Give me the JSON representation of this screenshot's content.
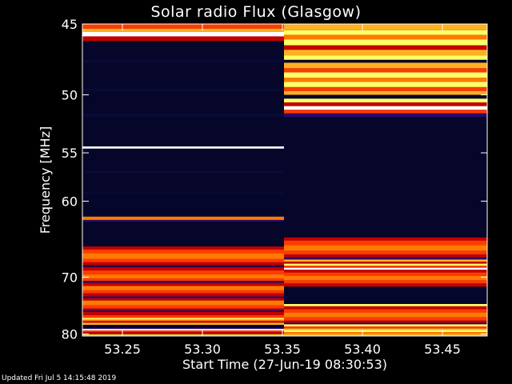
{
  "chart_data": {
    "type": "heatmap",
    "title": "Solar radio Flux (Glasgow)",
    "xlabel": "Start Time (27-Jun-19 08:30:53)",
    "ylabel": "Frequency [MHz]",
    "xlim": [
      53.225,
      53.478
    ],
    "ylim": [
      45.0,
      80.4
    ],
    "x_ticks": [
      "53.25",
      "53.30",
      "53.35",
      "53.40",
      "53.45"
    ],
    "x_tick_values": [
      53.25,
      53.3,
      53.35,
      53.4,
      53.45
    ],
    "y_ticks": [
      "45",
      "50",
      "55",
      "60",
      "70",
      "80"
    ],
    "y_tick_values": [
      45,
      50,
      55,
      60,
      70,
      80
    ],
    "y_scale": "reciprocal",
    "colormap": [
      "#050525",
      "#2a0a6a",
      "#c40000",
      "#ff3a00",
      "#ff7a00",
      "#ffb020",
      "#ffff66",
      "#ffffff"
    ],
    "segments": [
      {
        "x_range": [
          53.225,
          53.351
        ],
        "background": "#05062a",
        "bands": [
          {
            "f": [
              45.0,
              45.3
            ],
            "color": "#ff3a00"
          },
          {
            "f": [
              45.3,
              45.5
            ],
            "color": "#ffb020"
          },
          {
            "f": [
              45.5,
              45.8
            ],
            "color": "#ffffff"
          },
          {
            "f": [
              45.8,
              46.1
            ],
            "color": "#c40000"
          },
          {
            "f": [
              47.4,
              47.6
            ],
            "color": "#0a0a35"
          },
          {
            "f": [
              49.5,
              49.7
            ],
            "color": "#0a0a35"
          },
          {
            "f": [
              51.5,
              51.8
            ],
            "color": "#0a0a35"
          },
          {
            "f": [
              54.4,
              54.6
            ],
            "color": "#ffffff"
          },
          {
            "f": [
              56.8,
              57.0
            ],
            "color": "#0a0a35"
          },
          {
            "f": [
              59.0,
              59.2
            ],
            "color": "#0a0a35"
          },
          {
            "f": [
              61.8,
              62.2
            ],
            "color": "#ff7a00"
          },
          {
            "f": [
              62.2,
              62.4
            ],
            "color": "#2a0a6a"
          },
          {
            "f": [
              65.6,
              66.0
            ],
            "color": "#c40000"
          },
          {
            "f": [
              66.0,
              66.5
            ],
            "color": "#ff3a00"
          },
          {
            "f": [
              66.5,
              67.3
            ],
            "color": "#ff7a00"
          },
          {
            "f": [
              67.3,
              67.8
            ],
            "color": "#ff3a00"
          },
          {
            "f": [
              67.8,
              68.2
            ],
            "color": "#c40000"
          },
          {
            "f": [
              68.2,
              68.4
            ],
            "color": "#2a0a6a"
          },
          {
            "f": [
              68.5,
              69.0
            ],
            "color": "#c40000"
          },
          {
            "f": [
              69.0,
              69.6
            ],
            "color": "#ff3a00"
          },
          {
            "f": [
              69.6,
              70.2
            ],
            "color": "#ff7a00"
          },
          {
            "f": [
              70.2,
              70.6
            ],
            "color": "#ff3a00"
          },
          {
            "f": [
              70.6,
              70.9
            ],
            "color": "#2a0a6a"
          },
          {
            "f": [
              70.9,
              71.4
            ],
            "color": "#c40000"
          },
          {
            "f": [
              71.4,
              72.1
            ],
            "color": "#ff7a00"
          },
          {
            "f": [
              72.1,
              72.6
            ],
            "color": "#ff3a00"
          },
          {
            "f": [
              72.6,
              73.1
            ],
            "color": "#c40000"
          },
          {
            "f": [
              73.1,
              73.4
            ],
            "color": "#2a0a6a"
          },
          {
            "f": [
              73.4,
              73.8
            ],
            "color": "#c40000"
          },
          {
            "f": [
              73.8,
              74.6
            ],
            "color": "#ff7a00"
          },
          {
            "f": [
              74.6,
              75.2
            ],
            "color": "#ff3a00"
          },
          {
            "f": [
              75.2,
              75.5
            ],
            "color": "#c40000"
          },
          {
            "f": [
              75.5,
              75.8
            ],
            "color": "#2a0a6a"
          },
          {
            "f": [
              75.8,
              76.4
            ],
            "color": "#c40000"
          },
          {
            "f": [
              76.4,
              76.9
            ],
            "color": "#ff3a00"
          },
          {
            "f": [
              76.9,
              77.2
            ],
            "color": "#ffff66"
          },
          {
            "f": [
              77.2,
              77.5
            ],
            "color": "#ff7a00"
          },
          {
            "f": [
              77.5,
              77.8
            ],
            "color": "#c40000"
          },
          {
            "f": [
              77.8,
              78.2
            ],
            "color": "#ffb020"
          },
          {
            "f": [
              78.8,
              79.0
            ],
            "color": "#2a0a6a"
          },
          {
            "f": [
              79.0,
              79.3
            ],
            "color": "#ffffff"
          },
          {
            "f": [
              79.3,
              79.6
            ],
            "color": "#ff3a00"
          },
          {
            "f": [
              79.6,
              79.9
            ],
            "color": "#c40000"
          },
          {
            "f": [
              80.0,
              80.4
            ],
            "color": "#ffb020"
          }
        ]
      },
      {
        "x_range": [
          53.351,
          53.478
        ],
        "background": "#05062a",
        "bands": [
          {
            "f": [
              45.0,
              45.4
            ],
            "color": "#ffb020"
          },
          {
            "f": [
              45.4,
              45.7
            ],
            "color": "#ffff66"
          },
          {
            "f": [
              45.7,
              46.0
            ],
            "color": "#ff7a00"
          },
          {
            "f": [
              46.0,
              46.4
            ],
            "color": "#ffff66"
          },
          {
            "f": [
              46.4,
              46.7
            ],
            "color": "#c40000"
          },
          {
            "f": [
              46.7,
              47.1
            ],
            "color": "#ffb020"
          },
          {
            "f": [
              47.1,
              47.4
            ],
            "color": "#ffff66"
          },
          {
            "f": [
              47.4,
              47.6
            ],
            "color": "#05062a"
          },
          {
            "f": [
              47.6,
              48.0
            ],
            "color": "#ffb020"
          },
          {
            "f": [
              48.0,
              48.3
            ],
            "color": "#ff3a00"
          },
          {
            "f": [
              48.3,
              48.7
            ],
            "color": "#ffff66"
          },
          {
            "f": [
              48.7,
              49.0
            ],
            "color": "#ff7a00"
          },
          {
            "f": [
              49.0,
              49.4
            ],
            "color": "#ffff66"
          },
          {
            "f": [
              49.4,
              49.7
            ],
            "color": "#ff3a00"
          },
          {
            "f": [
              49.7,
              50.0
            ],
            "color": "#ffb020"
          },
          {
            "f": [
              50.0,
              50.3
            ],
            "color": "#05062a"
          },
          {
            "f": [
              50.3,
              50.6
            ],
            "color": "#ffff66"
          },
          {
            "f": [
              50.6,
              50.9
            ],
            "color": "#c40000"
          },
          {
            "f": [
              50.9,
              51.2
            ],
            "color": "#ffffff"
          },
          {
            "f": [
              51.2,
              51.5
            ],
            "color": "#ff3a00"
          },
          {
            "f": [
              51.5,
              51.8
            ],
            "color": "#2a0a6a"
          },
          {
            "f": [
              64.4,
              64.8
            ],
            "color": "#c40000"
          },
          {
            "f": [
              64.8,
              65.4
            ],
            "color": "#ff3a00"
          },
          {
            "f": [
              65.4,
              66.2
            ],
            "color": "#ff7a00"
          },
          {
            "f": [
              66.2,
              66.7
            ],
            "color": "#ff3a00"
          },
          {
            "f": [
              66.7,
              67.1
            ],
            "color": "#c40000"
          },
          {
            "f": [
              67.1,
              67.4
            ],
            "color": "#2a0a6a"
          },
          {
            "f": [
              67.4,
              67.7
            ],
            "color": "#ffb020"
          },
          {
            "f": [
              67.7,
              68.0
            ],
            "color": "#c40000"
          },
          {
            "f": [
              68.0,
              68.3
            ],
            "color": "#ffff66"
          },
          {
            "f": [
              68.3,
              68.6
            ],
            "color": "#ff3a00"
          },
          {
            "f": [
              68.6,
              68.9
            ],
            "color": "#ffffff"
          },
          {
            "f": [
              68.9,
              69.3
            ],
            "color": "#c40000"
          },
          {
            "f": [
              69.3,
              69.8
            ],
            "color": "#ff3a00"
          },
          {
            "f": [
              69.8,
              70.5
            ],
            "color": "#ff7a00"
          },
          {
            "f": [
              70.5,
              71.0
            ],
            "color": "#ff3a00"
          },
          {
            "f": [
              71.0,
              71.5
            ],
            "color": "#c40000"
          },
          {
            "f": [
              74.4,
              74.8
            ],
            "color": "#ffff66"
          },
          {
            "f": [
              74.8,
              75.3
            ],
            "color": "#c40000"
          },
          {
            "f": [
              75.3,
              75.9
            ],
            "color": "#ff3a00"
          },
          {
            "f": [
              75.9,
              76.8
            ],
            "color": "#ff7a00"
          },
          {
            "f": [
              76.8,
              77.4
            ],
            "color": "#ff3a00"
          },
          {
            "f": [
              77.4,
              77.8
            ],
            "color": "#c40000"
          },
          {
            "f": [
              77.8,
              78.1
            ],
            "color": "#2a0a6a"
          },
          {
            "f": [
              78.1,
              78.5
            ],
            "color": "#ffff66"
          },
          {
            "f": [
              78.5,
              78.9
            ],
            "color": "#ff3a00"
          },
          {
            "f": [
              78.9,
              79.2
            ],
            "color": "#ffb020"
          },
          {
            "f": [
              79.2,
              79.6
            ],
            "color": "#ffff66"
          },
          {
            "f": [
              79.6,
              80.0
            ],
            "color": "#ff7a00"
          },
          {
            "f": [
              80.0,
              80.4
            ],
            "color": "#ffb020"
          }
        ]
      }
    ]
  },
  "footer": "Updated Fri Jul  5 14:15:48 2019"
}
